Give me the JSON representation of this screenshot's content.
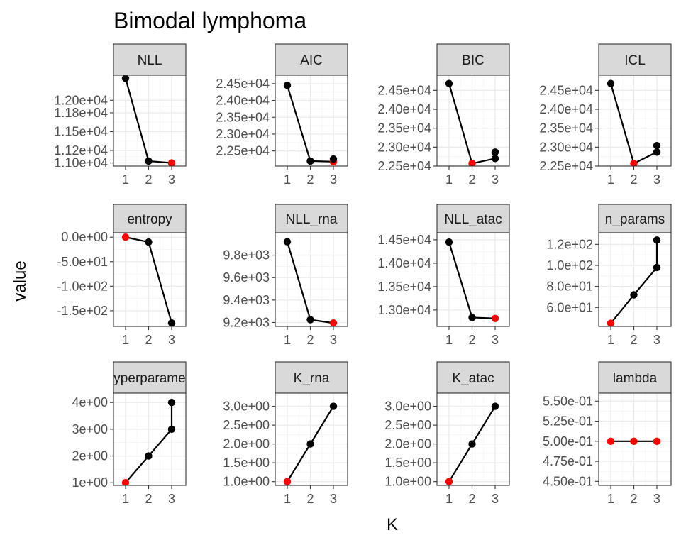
{
  "chart_data": {
    "type": "line",
    "title": "Bimodal lymphoma",
    "xlabel": "K",
    "ylabel": "value",
    "grid": true,
    "colors": {
      "line": "#000000",
      "point": "#000000",
      "highlight": "#ff0000",
      "strip_fill": "#d9d9d9",
      "grid": "#ebebeb"
    },
    "panels": [
      {
        "name": "NLL",
        "x": [
          1,
          2,
          3
        ],
        "y": [
          12350,
          11030,
          11000
        ],
        "extra": [],
        "highlight": 3,
        "ylim": [
          10950,
          12400
        ],
        "ytick_values": [
          11000,
          11200,
          11500,
          11800,
          12000
        ],
        "ytick_labels": [
          "1.10e+04",
          "1.12e+04",
          "1.15e+04",
          "1.18e+04",
          "1.20e+04"
        ]
      },
      {
        "name": "AIC",
        "x": [
          1,
          2,
          3
        ],
        "y": [
          24450,
          22200,
          22180
        ],
        "extra": [
          [
            3,
            22260
          ]
        ],
        "highlight": 3,
        "ylim": [
          22050,
          24750
        ],
        "ytick_values": [
          22500,
          23000,
          23500,
          24000,
          24500
        ],
        "ytick_labels": [
          "2.25e+04",
          "2.30e+04",
          "2.35e+04",
          "2.40e+04",
          "2.45e+04"
        ]
      },
      {
        "name": "BIC",
        "x": [
          1,
          2,
          3
        ],
        "y": [
          24680,
          22570,
          22700
        ],
        "extra": [
          [
            3,
            22870
          ]
        ],
        "highlight": 2,
        "ylim": [
          22500,
          24900
        ],
        "ytick_values": [
          22500,
          23000,
          23500,
          24000,
          24500
        ],
        "ytick_labels": [
          "2.25e+04",
          "2.30e+04",
          "2.35e+04",
          "2.40e+04",
          "2.45e+04"
        ]
      },
      {
        "name": "ICL",
        "x": [
          1,
          2,
          3
        ],
        "y": [
          24680,
          22570,
          22870
        ],
        "extra": [
          [
            3,
            23040
          ]
        ],
        "highlight": 2,
        "ylim": [
          22500,
          24900
        ],
        "ytick_values": [
          22500,
          23000,
          23500,
          24000,
          24500
        ],
        "ytick_labels": [
          "2.25e+04",
          "2.30e+04",
          "2.35e+04",
          "2.40e+04",
          "2.45e+04"
        ]
      },
      {
        "name": "entropy",
        "x": [
          1,
          2,
          3
        ],
        "y": [
          0,
          -10,
          -175
        ],
        "extra": [],
        "highlight": 1,
        "ylim": [
          -182,
          9
        ],
        "ytick_values": [
          0,
          -50,
          -100,
          -150
        ],
        "ytick_labels": [
          "0.0e+00",
          "-5.0e+01",
          "-1.0e+02",
          "-1.5e+02"
        ]
      },
      {
        "name": "NLL_rna",
        "x": [
          1,
          2,
          3
        ],
        "y": [
          9920,
          9225,
          9195
        ],
        "extra": [],
        "highlight": 3,
        "ylim": [
          9165,
          10000
        ],
        "ytick_values": [
          9200,
          9400,
          9600,
          9800
        ],
        "ytick_labels": [
          "9.2e+03",
          "9.4e+03",
          "9.6e+03",
          "9.8e+03"
        ]
      },
      {
        "name": "NLL_atac",
        "x": [
          1,
          2,
          3
        ],
        "y": [
          14450,
          12840,
          12820
        ],
        "extra": [],
        "highlight": 3,
        "ylim": [
          12650,
          14650
        ],
        "ytick_values": [
          13000,
          13500,
          14000,
          14500
        ],
        "ytick_labels": [
          "1.30e+04",
          "1.35e+04",
          "1.40e+04",
          "1.45e+04"
        ]
      },
      {
        "name": "n_params",
        "x": [
          1,
          2,
          3
        ],
        "y": [
          45,
          72,
          98
        ],
        "extra": [
          [
            3,
            124
          ]
        ],
        "connect_extra": true,
        "highlight": 1,
        "ylim": [
          42,
          131
        ],
        "ytick_values": [
          60,
          80,
          100,
          120
        ],
        "ytick_labels": [
          "6.0e+01",
          "8.0e+01",
          "1.0e+02",
          "1.2e+02"
        ]
      },
      {
        "name": "n_hyperparameters",
        "x": [
          1,
          2,
          3
        ],
        "y": [
          1,
          2,
          3
        ],
        "extra": [
          [
            3,
            4
          ]
        ],
        "connect_extra": true,
        "highlight": 1,
        "ylim": [
          0.9,
          4.35
        ],
        "ytick_values": [
          1,
          2,
          3,
          4
        ],
        "ytick_labels": [
          "1e+00",
          "2e+00",
          "3e+00",
          "4e+00"
        ]
      },
      {
        "name": "K_rna",
        "x": [
          1,
          2,
          3
        ],
        "y": [
          1,
          2,
          3
        ],
        "extra": [],
        "highlight": 1,
        "ylim": [
          0.9,
          3.35
        ],
        "ytick_values": [
          1.0,
          1.5,
          2.0,
          2.5,
          3.0
        ],
        "ytick_labels": [
          "1.0e+00",
          "1.5e+00",
          "2.0e+00",
          "2.5e+00",
          "3.0e+00"
        ]
      },
      {
        "name": "K_atac",
        "x": [
          1,
          2,
          3
        ],
        "y": [
          1,
          2,
          3
        ],
        "extra": [],
        "highlight": 1,
        "ylim": [
          0.9,
          3.35
        ],
        "ytick_values": [
          1.0,
          1.5,
          2.0,
          2.5,
          3.0
        ],
        "ytick_labels": [
          "1.0e+00",
          "1.5e+00",
          "2.0e+00",
          "2.5e+00",
          "3.0e+00"
        ]
      },
      {
        "name": "lambda",
        "x": [
          1,
          2,
          3
        ],
        "y": [
          0.5,
          0.5,
          0.5
        ],
        "extra": [],
        "highlight": "all",
        "ylim": [
          0.445,
          0.56
        ],
        "ytick_values": [
          0.45,
          0.475,
          0.5,
          0.525,
          0.55
        ],
        "ytick_labels": [
          "4.50e-01",
          "4.75e-01",
          "5.00e-01",
          "5.25e-01",
          "5.50e-01"
        ]
      }
    ],
    "xtick_labels": [
      "1",
      "2",
      "3"
    ]
  }
}
